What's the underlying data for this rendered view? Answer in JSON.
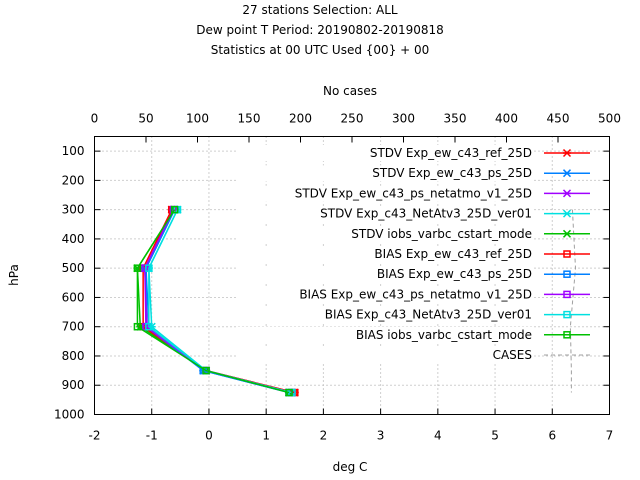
{
  "chart_data": {
    "type": "line",
    "title_lines": [
      "27 stations Selection: ALL",
      "Dew point T  Period: 20190802-20190818",
      "Statistics at 00 UTC  Used {00} + 00"
    ],
    "xlabel": "deg C",
    "ylabel": "hPa",
    "x2label": "No cases",
    "xlim": [
      -2,
      7
    ],
    "x2lim": [
      0,
      500
    ],
    "ylim": [
      1000,
      50
    ],
    "xticks": [
      "-2",
      "-1",
      "0",
      "1",
      "2",
      "3",
      "4",
      "5",
      "6",
      "7"
    ],
    "x2ticks": [
      "0",
      "50",
      "100",
      "150",
      "200",
      "250",
      "300",
      "350",
      "400",
      "450",
      "500"
    ],
    "yticks": [
      "100",
      "200",
      "300",
      "400",
      "500",
      "600",
      "700",
      "800",
      "900",
      "1000"
    ],
    "grid": true,
    "legend_position": "top-right",
    "pressure_levels": [
      300,
      500,
      700,
      850,
      925
    ],
    "series": [
      {
        "name": "STDV Exp_ew_c43_ref_25D",
        "stat": "STDV",
        "color": "#ff0000",
        "marker": "x",
        "x": [
          -0.65,
          -1.1,
          -1.1,
          -0.05,
          1.5
        ],
        "y": [
          300,
          500,
          700,
          850,
          925
        ]
      },
      {
        "name": "STDV Exp_ew_c43_ps_25D",
        "stat": "STDV",
        "color": "#0080ff",
        "marker": "x",
        "x": [
          -0.6,
          -1.1,
          -1.05,
          -0.1,
          1.4
        ],
        "y": [
          300,
          500,
          700,
          850,
          925
        ]
      },
      {
        "name": "STDV Exp_ew_c43_ps_netatmo_v1_25D",
        "stat": "STDV",
        "color": "#a000ff",
        "marker": "x",
        "x": [
          -0.62,
          -1.12,
          -1.08,
          -0.05,
          1.45
        ],
        "y": [
          300,
          500,
          700,
          850,
          925
        ]
      },
      {
        "name": "STDV Exp_c43_NetAtv3_25D_ver01",
        "stat": "STDV",
        "color": "#00e0e0",
        "marker": "x",
        "x": [
          -0.55,
          -1.05,
          -1.0,
          -0.05,
          1.45
        ],
        "y": [
          300,
          500,
          700,
          850,
          925
        ]
      },
      {
        "name": "STDV iobs_varbc_cstart_mode",
        "stat": "STDV",
        "color": "#00c000",
        "marker": "x",
        "x": [
          -0.6,
          -1.25,
          -1.2,
          -0.05,
          1.4
        ],
        "y": [
          300,
          500,
          700,
          850,
          925
        ]
      },
      {
        "name": "BIAS Exp_ew_c43_ref_25D",
        "stat": "BIAS",
        "color": "#ff0000",
        "marker": "square",
        "x": [
          -0.65,
          -1.15,
          -1.15,
          -0.05,
          1.5
        ],
        "y": [
          300,
          500,
          700,
          850,
          925
        ]
      },
      {
        "name": "BIAS Exp_ew_c43_ps_25D",
        "stat": "BIAS",
        "color": "#0080ff",
        "marker": "square",
        "x": [
          -0.6,
          -1.1,
          -1.1,
          -0.1,
          1.4
        ],
        "y": [
          300,
          500,
          700,
          850,
          925
        ]
      },
      {
        "name": "BIAS Exp_ew_c43_ps_netatmo_v1_25D",
        "stat": "BIAS",
        "color": "#a000ff",
        "marker": "square",
        "x": [
          -0.62,
          -1.12,
          -1.1,
          -0.05,
          1.45
        ],
        "y": [
          300,
          500,
          700,
          850,
          925
        ]
      },
      {
        "name": "BIAS Exp_c43_NetAtv3_25D_ver01",
        "stat": "BIAS",
        "color": "#00e0e0",
        "marker": "square",
        "x": [
          -0.55,
          -1.05,
          -1.05,
          -0.05,
          1.45
        ],
        "y": [
          300,
          500,
          700,
          850,
          925
        ]
      },
      {
        "name": "BIAS iobs_varbc_cstart_mode",
        "stat": "BIAS",
        "color": "#00c000",
        "marker": "square",
        "x": [
          -0.6,
          -1.25,
          -1.25,
          -0.05,
          1.4
        ],
        "y": [
          300,
          500,
          700,
          850,
          925
        ]
      }
    ],
    "cases_series": {
      "name": "CASES",
      "color": "#a0a0a0",
      "marker": "none",
      "counts": [
        464,
        467,
        462,
        463,
        463
      ],
      "y": [
        300,
        500,
        700,
        850,
        925
      ]
    }
  }
}
